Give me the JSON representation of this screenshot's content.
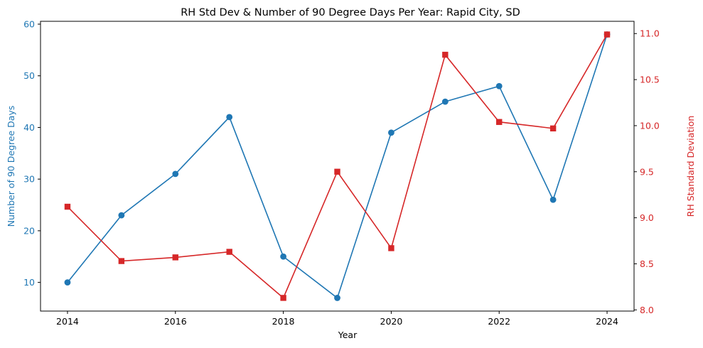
{
  "chart_data": {
    "type": "line",
    "title": "RH Std Dev & Number of 90 Degree Days Per Year: Rapid City, SD",
    "xlabel": "Year",
    "x": [
      2014,
      2015,
      2016,
      2017,
      2018,
      2019,
      2020,
      2021,
      2022,
      2023,
      2024
    ],
    "xticks": [
      "2014",
      "2016",
      "2018",
      "2020",
      "2022",
      "2024"
    ],
    "xlim": [
      2013.5,
      2024.5
    ],
    "grid": false,
    "series": [
      {
        "axis": "left",
        "color": "#1f77b4",
        "marker": "circle",
        "values": [
          10,
          23,
          31,
          42,
          15,
          7,
          39,
          45,
          48,
          26,
          58
        ]
      },
      {
        "axis": "right",
        "color": "#d62728",
        "marker": "square",
        "values": [
          9.12,
          8.53,
          8.57,
          8.63,
          8.13,
          9.5,
          8.67,
          10.77,
          10.04,
          9.97,
          10.99
        ]
      }
    ],
    "y_left": {
      "label": "Number of 90 Degree Days",
      "ticks": [
        "10",
        "20",
        "30",
        "40",
        "50",
        "60"
      ],
      "lim": [
        4.45,
        60.55
      ],
      "color": "#1f77b4"
    },
    "y_right": {
      "label": "RH Standard Deviation",
      "ticks": [
        "8.0",
        "8.5",
        "9.0",
        "9.5",
        "10.0",
        "10.5",
        "11.0"
      ],
      "lim": [
        7.987,
        11.133
      ],
      "color": "#d62728"
    }
  }
}
